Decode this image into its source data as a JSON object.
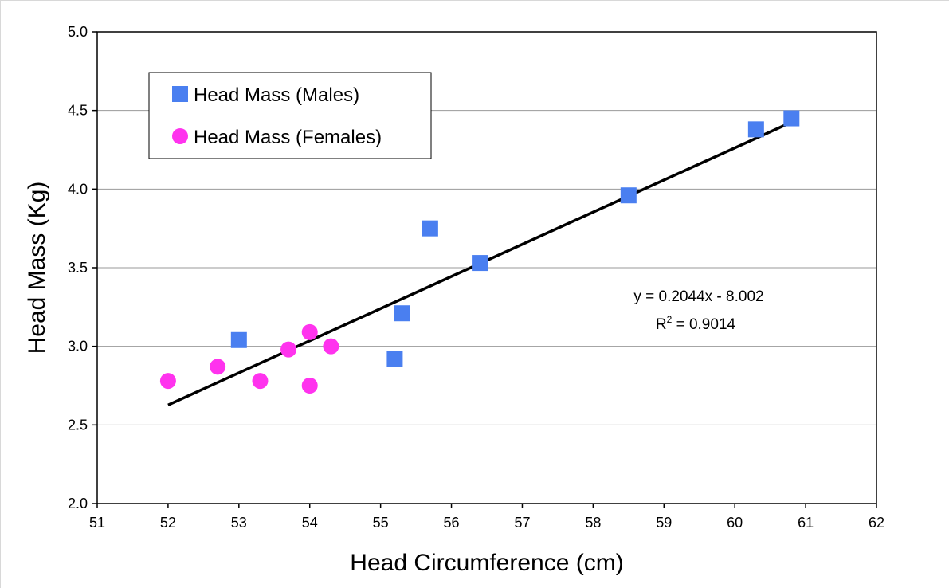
{
  "chart_data": {
    "type": "scatter",
    "title": "",
    "xlabel": "Head Circumference (cm)",
    "ylabel": "Head Mass (Kg)",
    "xlim": [
      51,
      62
    ],
    "ylim": [
      2.0,
      5.0
    ],
    "xticks": [
      "51",
      "52",
      "53",
      "54",
      "55",
      "56",
      "57",
      "58",
      "59",
      "60",
      "61",
      "62"
    ],
    "yticks": [
      "2.0",
      "2.5",
      "3.0",
      "3.5",
      "4.0",
      "4.5",
      "5.0"
    ],
    "grid": "horizontal",
    "legend_position": "top-left",
    "series": [
      {
        "name": "Head Mass (Males)",
        "marker": "square",
        "color": "#4a7ff0",
        "points": [
          {
            "x": 53.0,
            "y": 3.04
          },
          {
            "x": 55.2,
            "y": 2.92
          },
          {
            "x": 55.3,
            "y": 3.21
          },
          {
            "x": 55.7,
            "y": 3.75
          },
          {
            "x": 56.4,
            "y": 3.53
          },
          {
            "x": 58.5,
            "y": 3.96
          },
          {
            "x": 60.3,
            "y": 4.38
          },
          {
            "x": 60.8,
            "y": 4.45
          }
        ]
      },
      {
        "name": "Head Mass (Females)",
        "marker": "circle",
        "color": "#ff33ee",
        "points": [
          {
            "x": 52.0,
            "y": 2.78
          },
          {
            "x": 52.7,
            "y": 2.87
          },
          {
            "x": 53.3,
            "y": 2.78
          },
          {
            "x": 53.7,
            "y": 2.98
          },
          {
            "x": 54.0,
            "y": 3.09
          },
          {
            "x": 54.0,
            "y": 2.75
          },
          {
            "x": 54.3,
            "y": 3.0
          }
        ]
      }
    ],
    "trendline": {
      "slope": 0.2044,
      "intercept": -8.002,
      "x_range": [
        52,
        60.8
      ],
      "color": "#000000",
      "equation_label": "y = 0.2044x - 8.002",
      "r2_prefix": "R",
      "r2_exponent": "2",
      "r2_value": " = 0.9014"
    }
  }
}
